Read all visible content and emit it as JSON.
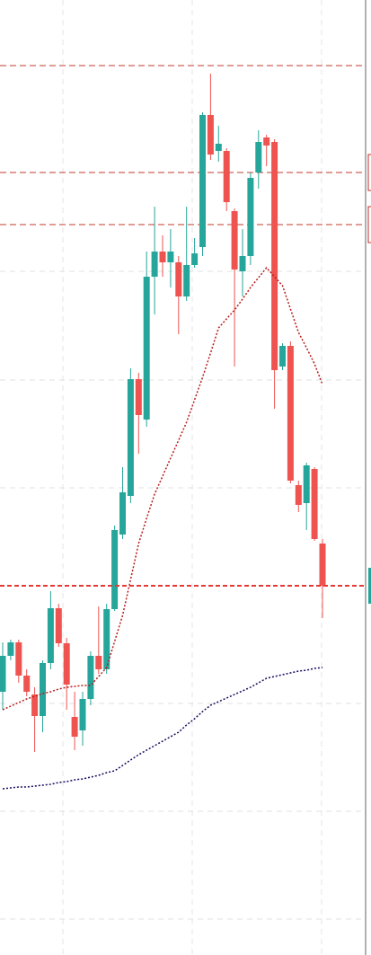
{
  "chart_data": {
    "type": "candlestick",
    "up_color": "#26a69a",
    "down_color": "#ef5350",
    "ylim": [
      0,
      1063
    ],
    "yticks": [
      40,
      160,
      280,
      520,
      640,
      761
    ],
    "grid": true,
    "open": [
      293,
      333,
      348,
      311,
      290,
      266,
      325,
      386,
      347,
      265,
      250,
      285,
      333,
      318,
      385,
      468,
      511,
      641,
      596,
      755,
      783,
      771,
      771,
      733,
      768,
      788,
      935,
      895,
      895,
      828,
      761,
      778,
      871,
      910,
      905,
      655,
      678,
      523,
      503,
      541,
      458
    ],
    "high": [
      348,
      351,
      351,
      318,
      298,
      328,
      405,
      391,
      353,
      293,
      293,
      338,
      388,
      391,
      478,
      543,
      653,
      648,
      783,
      833,
      801,
      808,
      778,
      833,
      798,
      938,
      981,
      923,
      898,
      831,
      808,
      871,
      918,
      913,
      908,
      681,
      683,
      528,
      548,
      543,
      463
    ],
    "low": [
      273,
      328,
      303,
      288,
      226,
      248,
      318,
      343,
      273,
      228,
      233,
      278,
      313,
      313,
      383,
      463,
      503,
      558,
      588,
      713,
      755,
      743,
      691,
      728,
      765,
      778,
      885,
      883,
      828,
      655,
      733,
      768,
      853,
      878,
      608,
      651,
      525,
      493,
      473,
      461,
      375
    ],
    "close": [
      333,
      348,
      311,
      293,
      266,
      325,
      386,
      347,
      301,
      243,
      285,
      333,
      318,
      385,
      473,
      515,
      641,
      601,
      755,
      783,
      771,
      783,
      733,
      768,
      781,
      935,
      891,
      903,
      838,
      763,
      778,
      865,
      905,
      901,
      651,
      678,
      528,
      501,
      545,
      463,
      411
    ],
    "series": [
      {
        "color": "#b71c1c",
        "values": [
          273,
          277,
          281,
          285,
          288,
          291,
          293,
          296,
          298,
          299,
          300,
          300,
          310,
          320,
          349,
          378,
          418,
          458,
          486,
          513,
          533,
          553,
          573,
          593,
          618,
          643,
          670,
          698,
          708,
          718,
          730,
          743,
          754,
          765,
          755,
          745,
          719,
          693,
          676,
          658,
          635
        ]
      },
      {
        "color": "#1a0a5e",
        "values": [
          185,
          186,
          187,
          187,
          188,
          189,
          190,
          192,
          193,
          195,
          196,
          198,
          200,
          203,
          205,
          211,
          217,
          223,
          228,
          233,
          238,
          243,
          248,
          256,
          263,
          271,
          278,
          282,
          286,
          290,
          294,
          298,
          303,
          308,
          310,
          312,
          314,
          316,
          317,
          319,
          320
        ]
      }
    ],
    "price_lines": [
      990,
      871,
      813
    ],
    "last_price": 411
  }
}
